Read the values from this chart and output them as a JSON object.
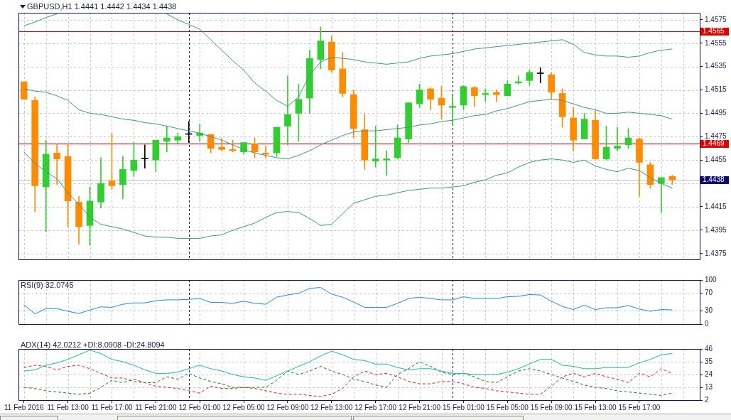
{
  "chart_data": [
    {
      "type": "candlestick",
      "title": "GBPUSD,H1 1.4441 1.4442 1.4434 1.4438",
      "categories": [
        null,
        null,
        null,
        null,
        null,
        null,
        null,
        null,
        null,
        null,
        null,
        null,
        null,
        null,
        null,
        null,
        null,
        null,
        null,
        null,
        null,
        null,
        null,
        null,
        null,
        null,
        null,
        null,
        null,
        null,
        null,
        null,
        null,
        null,
        null,
        null,
        null,
        null,
        null,
        null,
        null,
        null,
        null,
        null,
        null,
        null,
        null,
        null,
        null,
        null,
        null,
        null,
        null,
        null,
        null,
        null,
        null,
        null,
        null,
        null,
        null,
        null
      ],
      "ohlc": [
        [
          1.4522,
          1.4522,
          1.4507,
          1.4507
        ],
        [
          1.4506,
          1.4509,
          1.4411,
          1.4433
        ],
        [
          1.4432,
          1.4472,
          1.4394,
          1.446
        ],
        [
          1.4461,
          1.4469,
          1.4434,
          1.4456
        ],
        [
          1.4458,
          1.4469,
          1.4398,
          1.442
        ],
        [
          1.4419,
          1.4424,
          1.4383,
          1.4398
        ],
        [
          1.4399,
          1.4432,
          1.4382,
          1.442
        ],
        [
          1.4419,
          1.4457,
          1.4414,
          1.4435
        ],
        [
          1.4437,
          1.4478,
          1.443,
          1.4433
        ],
        [
          1.4434,
          1.4458,
          1.4422,
          1.4447
        ],
        [
          1.4446,
          1.447,
          1.4441,
          1.4455
        ],
        [
          1.4456,
          1.4468,
          1.4448,
          1.4456
        ],
        [
          1.4455,
          1.4472,
          1.4445,
          1.4472
        ],
        [
          1.4471,
          1.4484,
          1.4462,
          1.4474
        ],
        [
          1.4472,
          1.4478,
          1.4469,
          1.4475
        ],
        [
          1.4477,
          1.4488,
          1.447,
          1.4477
        ],
        [
          1.4476,
          1.4486,
          1.4471,
          1.4478
        ],
        [
          1.4477,
          1.4477,
          1.4461,
          1.4465
        ],
        [
          1.4466,
          1.4474,
          1.4463,
          1.4464
        ],
        [
          1.4464,
          1.4472,
          1.4462,
          1.4463
        ],
        [
          1.4462,
          1.447,
          1.446,
          1.447
        ],
        [
          1.4469,
          1.4474,
          1.4457,
          1.4462
        ],
        [
          1.4461,
          1.4467,
          1.4457,
          1.446
        ],
        [
          1.4461,
          1.4483,
          1.4458,
          1.4483
        ],
        [
          1.4484,
          1.4527,
          1.4468,
          1.4494
        ],
        [
          1.4495,
          1.452,
          1.4471,
          1.4507
        ],
        [
          1.4508,
          1.4549,
          1.4495,
          1.4542
        ],
        [
          1.4541,
          1.4569,
          1.4533,
          1.4557
        ],
        [
          1.4556,
          1.4561,
          1.453,
          1.4532
        ],
        [
          1.4533,
          1.4547,
          1.4509,
          1.4512
        ],
        [
          1.4511,
          1.4515,
          1.4474,
          1.4482
        ],
        [
          1.4481,
          1.4494,
          1.4447,
          1.4455
        ],
        [
          1.4454,
          1.4484,
          1.4449,
          1.4456
        ],
        [
          1.4455,
          1.4463,
          1.4442,
          1.4456
        ],
        [
          1.4457,
          1.4485,
          1.4456,
          1.4474
        ],
        [
          1.4473,
          1.4504,
          1.447,
          1.4504
        ],
        [
          1.4503,
          1.452,
          1.45,
          1.4515
        ],
        [
          1.4516,
          1.4517,
          1.4498,
          1.4507
        ],
        [
          1.4508,
          1.4518,
          1.449,
          1.4502
        ],
        [
          1.45,
          1.4511,
          1.4485,
          1.4501
        ],
        [
          1.4502,
          1.4519,
          1.4498,
          1.4518
        ],
        [
          1.4517,
          1.4518,
          1.4501,
          1.451
        ],
        [
          1.4511,
          1.4516,
          1.4505,
          1.4512
        ],
        [
          1.4513,
          1.4515,
          1.4505,
          1.4511
        ],
        [
          1.451,
          1.4523,
          1.451,
          1.452
        ],
        [
          1.4521,
          1.4527,
          1.452,
          1.4522
        ],
        [
          1.4523,
          1.4532,
          1.4519,
          1.453
        ],
        [
          1.4529,
          1.4534,
          1.4521,
          1.4529
        ],
        [
          1.4528,
          1.453,
          1.4507,
          1.4513
        ],
        [
          1.4512,
          1.4516,
          1.4483,
          1.4492
        ],
        [
          1.4491,
          1.45,
          1.4463,
          1.4472
        ],
        [
          1.4473,
          1.4495,
          1.4473,
          1.449
        ],
        [
          1.4489,
          1.4498,
          1.4456,
          1.4456
        ],
        [
          1.4456,
          1.4484,
          1.4455,
          1.4466
        ],
        [
          1.4465,
          1.4483,
          1.4463,
          1.4467
        ],
        [
          1.4468,
          1.4482,
          1.4465,
          1.4474
        ],
        [
          1.4473,
          1.4474,
          1.4424,
          1.4453
        ],
        [
          1.4451,
          1.4453,
          1.4431,
          1.4434
        ],
        [
          1.4435,
          1.444,
          1.441,
          1.444
        ],
        [
          1.4441,
          1.4442,
          1.4434,
          1.4438
        ],
        null,
        null
      ],
      "colors": [
        "#ff8c00",
        "#ff8c00",
        "#32cd32",
        "#ff8c00",
        "#ff8c00",
        "#ff8c00",
        "#32cd32",
        "#32cd32",
        "#ff8c00",
        "#32cd32",
        "#32cd32",
        "#000000",
        "#32cd32",
        "#32cd32",
        "#32cd32",
        "#000000",
        "#32cd32",
        "#ff8c00",
        "#ff8c00",
        "#ff8c00",
        "#32cd32",
        "#ff8c00",
        "#ff8c00",
        "#32cd32",
        "#32cd32",
        "#32cd32",
        "#32cd32",
        "#32cd32",
        "#ff8c00",
        "#ff8c00",
        "#ff8c00",
        "#ff8c00",
        "#32cd32",
        "#32cd32",
        "#32cd32",
        "#32cd32",
        "#32cd32",
        "#ff8c00",
        "#ff8c00",
        "#32cd32",
        "#32cd32",
        "#ff8c00",
        "#32cd32",
        "#ff8c00",
        "#32cd32",
        "#32cd32",
        "#32cd32",
        "#000000",
        "#ff8c00",
        "#ff8c00",
        "#ff8c00",
        "#32cd32",
        "#ff8c00",
        "#32cd32",
        "#32cd32",
        "#32cd32",
        "#ff8c00",
        "#ff8c00",
        "#32cd32",
        "#ff8c00",
        null,
        null
      ],
      "series": [
        {
          "type": "line",
          "color": "#3a9a78",
          "values": [
            1.457,
            1.4573,
            1.4577,
            1.458,
            null,
            null,
            null,
            null,
            null,
            null,
            null,
            null,
            null,
            1.458,
            1.4575,
            1.4571,
            1.4567,
            1.4558,
            1.4549,
            1.454,
            1.4532,
            1.4521,
            1.4514,
            1.4506,
            1.4501,
            1.4509,
            1.4528,
            1.4539,
            1.4543,
            1.4542,
            1.4541,
            1.4539,
            1.4538,
            1.4537,
            1.4538,
            1.4539,
            1.4542,
            1.4544,
            1.4545,
            1.4546,
            1.4548,
            1.455,
            1.4551,
            1.4552,
            1.4553,
            1.4554,
            1.4555,
            1.4556,
            1.4557,
            1.4558,
            1.4554,
            1.4547,
            1.4545,
            1.4544,
            1.4544,
            1.4543,
            1.4544,
            1.4547,
            1.4549,
            1.455,
            null,
            null
          ]
        },
        {
          "type": "line",
          "color": "#3a9a78",
          "values": [
            1.4516,
            1.4514,
            1.4513,
            1.451,
            1.4506,
            1.4498,
            1.4495,
            1.4494,
            1.4492,
            1.449,
            1.4489,
            1.4487,
            1.4486,
            1.4484,
            1.4482,
            1.448,
            1.4478,
            1.4475,
            1.4472,
            1.4468,
            1.4464,
            1.4461,
            1.4459,
            1.4457,
            1.4456,
            1.4459,
            1.4463,
            1.4468,
            1.4472,
            1.4476,
            1.4479,
            1.448,
            1.448,
            1.4481,
            1.4482,
            1.4483,
            1.4485,
            1.4486,
            1.4488,
            1.4489,
            1.4491,
            1.4493,
            1.4494,
            1.4497,
            1.4499,
            1.4502,
            1.4505,
            1.4506,
            1.4507,
            1.4506,
            1.4503,
            1.45,
            1.4498,
            1.4495,
            1.4495,
            1.4496,
            1.4495,
            1.4494,
            1.4493,
            1.449,
            null,
            null
          ]
        },
        {
          "type": "line",
          "color": "#3a9a78",
          "values": [
            1.4462,
            1.4452,
            1.4445,
            1.4439,
            1.4427,
            1.4417,
            1.4406,
            1.44,
            1.4398,
            1.4396,
            1.4393,
            1.439,
            1.4389,
            1.4389,
            1.4388,
            1.4388,
            1.4388,
            1.439,
            1.4391,
            1.4395,
            1.4398,
            1.4401,
            1.4406,
            1.441,
            1.4411,
            1.441,
            1.4405,
            1.4399,
            1.44,
            1.4409,
            1.4418,
            1.4421,
            1.4424,
            1.4425,
            1.4427,
            1.4429,
            1.443,
            1.4431,
            1.4431,
            1.4432,
            1.4433,
            1.4436,
            1.4438,
            1.4442,
            1.4444,
            1.4449,
            1.4453,
            1.4455,
            1.4456,
            1.4455,
            1.4453,
            1.4455,
            1.445,
            1.4447,
            1.4445,
            1.4448,
            1.4446,
            1.444,
            1.4435,
            1.4431,
            null,
            null
          ]
        }
      ],
      "ylim": [
        1.437,
        1.4581
      ],
      "yticks": [
        1.4375,
        1.4395,
        1.4415,
        {
          "value": 1.4435,
          "label": null
        },
        1.4455,
        1.4475,
        1.4495,
        1.4515,
        1.4535,
        1.4555,
        1.4575
      ],
      "grid": true,
      "tick_labels": "y",
      "ref_lines": [
        {
          "axis": "y",
          "value": 1.4565,
          "label": "1.4565",
          "color": "#dd0000"
        },
        {
          "axis": "y",
          "value": 1.4469,
          "label": "1.4469",
          "color": "#dd0000"
        },
        {
          "axis": "y",
          "value": 1.4438,
          "color": "#c0c0c0"
        }
      ],
      "annotations": [
        "1.4438"
      ]
    },
    {
      "type": "line",
      "title": "RSI(9) 32.0745",
      "categories": [
        null,
        null,
        null,
        null,
        null,
        null,
        null,
        null,
        null,
        null,
        null,
        null,
        null,
        null,
        null,
        null,
        null,
        null,
        null,
        null,
        null,
        null,
        null,
        null,
        null,
        null,
        null,
        null,
        null,
        null,
        null,
        null,
        null,
        null,
        null,
        null,
        null,
        null,
        null,
        null,
        null,
        null,
        null,
        null,
        null,
        null,
        null,
        null,
        null,
        null,
        null,
        null,
        null,
        null,
        null,
        null,
        null,
        null,
        null,
        null,
        null,
        null
      ],
      "series": [
        {
          "color": "#1e88e5",
          "values": [
            44,
            23,
            35,
            35,
            29,
            24,
            32,
            39,
            38,
            45,
            48,
            48,
            53,
            55,
            55,
            56,
            58,
            49,
            49,
            47,
            52,
            47,
            45,
            61,
            66,
            70,
            81,
            83,
            68,
            61,
            50,
            38,
            38,
            38,
            47,
            58,
            61,
            58,
            55,
            55,
            62,
            58,
            58,
            58,
            62,
            63,
            67,
            66,
            52,
            40,
            33,
            43,
            33,
            37,
            37,
            42,
            34,
            29,
            33,
            32.0745,
            null,
            null
          ]
        }
      ],
      "ylim": [
        0,
        100
      ],
      "yticks": [
        0,
        30,
        70,
        100
      ],
      "grid": true,
      "tick_labels": "y"
    },
    {
      "type": "line",
      "title": "ADX(14) 42.0212 +DI:8.0908 -DI:24.8094",
      "categories": [
        "11 Feb 2016",
        null,
        null,
        null,
        "11 Feb 13:00",
        null,
        null,
        null,
        "11 Feb 17:00",
        null,
        null,
        null,
        "11 Feb 21:00",
        null,
        null,
        null,
        "12 Feb 01:00",
        null,
        null,
        null,
        "12 Feb 05:00",
        null,
        null,
        null,
        "12 Feb 09:00",
        null,
        null,
        null,
        "12 Feb 13:00",
        null,
        null,
        null,
        "12 Feb 17:00",
        null,
        null,
        null,
        "12 Feb 21:00",
        null,
        null,
        null,
        "15 Feb 01:00",
        null,
        null,
        null,
        "15 Feb 05:00",
        null,
        null,
        null,
        "15 Feb 09:00",
        null,
        null,
        null,
        "15 Feb 13:00",
        null,
        null,
        null,
        "15 Feb 17:00",
        null,
        null,
        null,
        null,
        null
      ],
      "series": [
        {
          "color": "#20b2aa",
          "values": [
            27,
            28,
            32,
            34,
            37,
            41,
            45,
            42,
            37,
            35,
            32,
            28,
            25,
            25,
            26,
            29,
            32,
            29,
            27,
            24,
            22,
            21,
            19,
            23,
            27,
            31,
            35,
            40,
            44,
            41,
            37,
            36,
            33,
            33,
            30,
            28,
            29,
            29,
            27,
            25,
            25,
            24,
            24,
            24,
            26,
            29,
            33,
            37,
            37,
            32,
            31,
            29,
            29,
            30,
            30,
            30,
            34,
            37,
            41,
            42.0212,
            null,
            null
          ]
        },
        {
          "color": "#1f7a1f",
          "line_style": "dashed",
          "values": [
            13,
            12,
            10,
            9,
            8,
            7,
            8,
            13,
            19,
            17,
            20,
            17,
            17,
            22,
            20,
            25,
            21,
            18,
            16,
            13,
            13,
            13,
            13,
            19,
            27,
            24,
            27,
            31,
            27,
            24,
            20,
            18,
            15,
            13,
            24,
            29,
            35,
            31,
            26,
            24,
            25,
            22,
            18,
            17,
            22,
            27,
            29,
            27,
            24,
            21,
            18,
            15,
            13,
            12,
            10,
            9,
            8,
            7,
            6,
            8.0908,
            null,
            null
          ]
        },
        {
          "color": "#d62020",
          "line_style": "dashed",
          "values": [
            30,
            32,
            31,
            28,
            31,
            32,
            29,
            25,
            21,
            21,
            18,
            17,
            14,
            13,
            12,
            10,
            8,
            14,
            12,
            12,
            13,
            12,
            10,
            8,
            7,
            7,
            6,
            5,
            7,
            12,
            22,
            27,
            24,
            25,
            22,
            18,
            16,
            16,
            18,
            18,
            16,
            13,
            12,
            10,
            9,
            8,
            7,
            7,
            14,
            22,
            25,
            22,
            25,
            22,
            20,
            17,
            25,
            22,
            29,
            24.8094,
            null,
            null
          ]
        }
      ],
      "ylim": [
        2,
        46
      ],
      "yticks": [
        2,
        13,
        24,
        35,
        46
      ],
      "grid": true
    }
  ]
}
